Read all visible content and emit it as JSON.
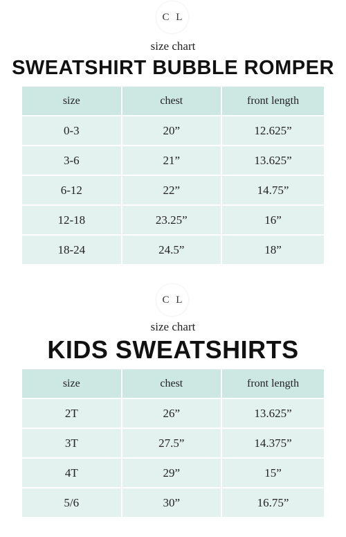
{
  "romper": {
    "logo": "C L",
    "subtitle": "size chart",
    "title": "SWEATSHIRT BUBBLE ROMPER",
    "headers": [
      "size",
      "chest",
      "front length"
    ],
    "rows": [
      [
        "0-3",
        "20”",
        "12.625”"
      ],
      [
        "3-6",
        "21”",
        "13.625”"
      ],
      [
        "6-12",
        "22”",
        "14.75”"
      ],
      [
        "12-18",
        "23.25”",
        "16”"
      ],
      [
        "18-24",
        "24.5”",
        "18”"
      ]
    ]
  },
  "kids": {
    "logo": "C L",
    "subtitle": "size chart",
    "title": "KIDS SWEATSHIRTS",
    "headers": [
      "size",
      "chest",
      "front length"
    ],
    "rows": [
      [
        "2T",
        "26”",
        "13.625”"
      ],
      [
        "3T",
        "27.5”",
        "14.375”"
      ],
      [
        "4T",
        "29”",
        "15”"
      ],
      [
        "5/6",
        "30”",
        "16.75”"
      ]
    ]
  },
  "colors": {
    "header_bg": "#cde8e2",
    "cell_bg": "#e3f2ef"
  }
}
